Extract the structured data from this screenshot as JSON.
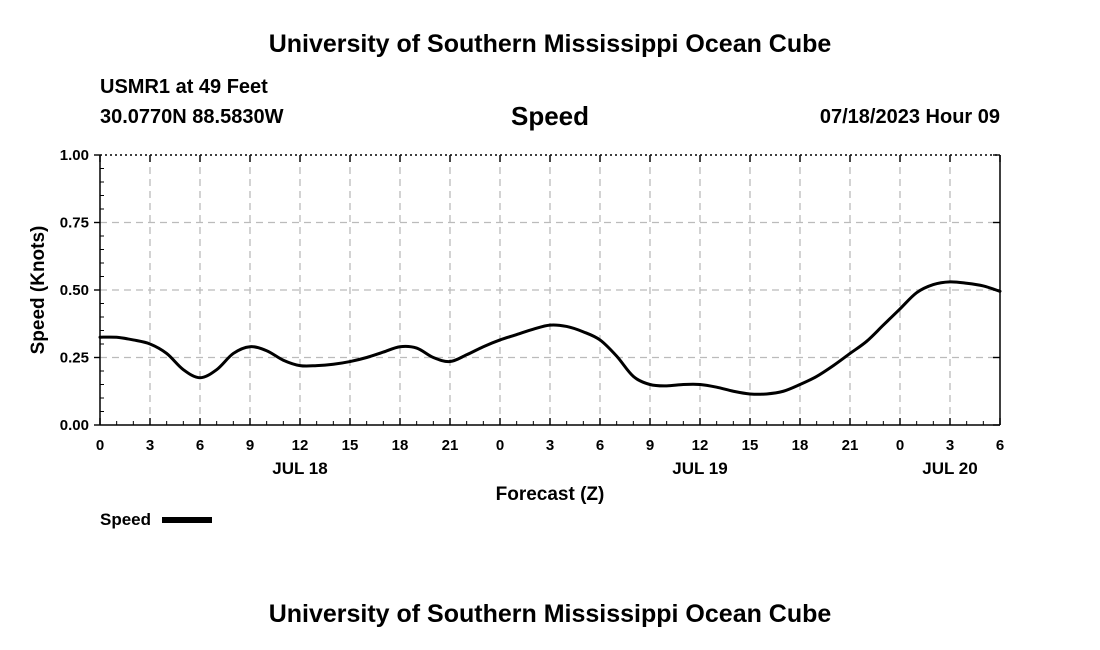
{
  "header": {
    "title": "University of Southern Mississippi Ocean Cube",
    "station": "USMR1 at 49 Feet",
    "coords": "30.0770N  88.5830W",
    "variable": "Speed",
    "datetime": "07/18/2023 Hour 09"
  },
  "footer": {
    "title": "University of Southern Mississippi Ocean Cube"
  },
  "legend": {
    "label": "Speed"
  },
  "colors": {
    "line": "#000000",
    "grid": "#bbbbbb",
    "axis": "#000000"
  },
  "chart_data": {
    "type": "line",
    "title": "Speed",
    "xlabel": "Forecast (Z)",
    "ylabel": "Speed (Knots)",
    "x_unit": "forecast hours from JUL 18 00Z",
    "xlim": [
      0,
      54
    ],
    "ylim": [
      0,
      1
    ],
    "yticks": [
      0.0,
      0.25,
      0.5,
      0.75,
      1.0
    ],
    "ytick_labels": [
      "0.00",
      "0.25",
      "0.50",
      "0.75",
      "1.00"
    ],
    "xticks": [
      0,
      3,
      6,
      9,
      12,
      15,
      18,
      21,
      24,
      27,
      30,
      33,
      36,
      39,
      42,
      45,
      48,
      51,
      54
    ],
    "xtick_labels": [
      "0",
      "3",
      "6",
      "9",
      "12",
      "15",
      "18",
      "21",
      "0",
      "3",
      "6",
      "9",
      "12",
      "15",
      "18",
      "21",
      "0",
      "3",
      "6"
    ],
    "date_labels": [
      {
        "x": 12,
        "label": "JUL 18"
      },
      {
        "x": 36,
        "label": "JUL 19"
      },
      {
        "x": 51,
        "label": "JUL 20"
      }
    ],
    "grid": true,
    "legend_position": "bottom-left",
    "series": [
      {
        "name": "Speed",
        "x": [
          0,
          1,
          2,
          3,
          4,
          5,
          6,
          7,
          8,
          9,
          10,
          11,
          12,
          13,
          14,
          15,
          16,
          17,
          18,
          19,
          20,
          21,
          22,
          23,
          24,
          25,
          26,
          27,
          28,
          29,
          30,
          31,
          32,
          33,
          34,
          35,
          36,
          37,
          38,
          39,
          40,
          41,
          42,
          43,
          44,
          45,
          46,
          47,
          48,
          49,
          50,
          51,
          52,
          53,
          54
        ],
        "values": [
          0.325,
          0.325,
          0.315,
          0.3,
          0.265,
          0.205,
          0.175,
          0.205,
          0.265,
          0.29,
          0.275,
          0.24,
          0.22,
          0.22,
          0.225,
          0.235,
          0.25,
          0.27,
          0.29,
          0.285,
          0.25,
          0.235,
          0.26,
          0.29,
          0.315,
          0.335,
          0.355,
          0.37,
          0.365,
          0.345,
          0.315,
          0.255,
          0.18,
          0.15,
          0.145,
          0.15,
          0.15,
          0.14,
          0.125,
          0.115,
          0.115,
          0.125,
          0.15,
          0.18,
          0.22,
          0.265,
          0.31,
          0.37,
          0.43,
          0.49,
          0.52,
          0.53,
          0.525,
          0.515,
          0.495
        ]
      }
    ]
  }
}
